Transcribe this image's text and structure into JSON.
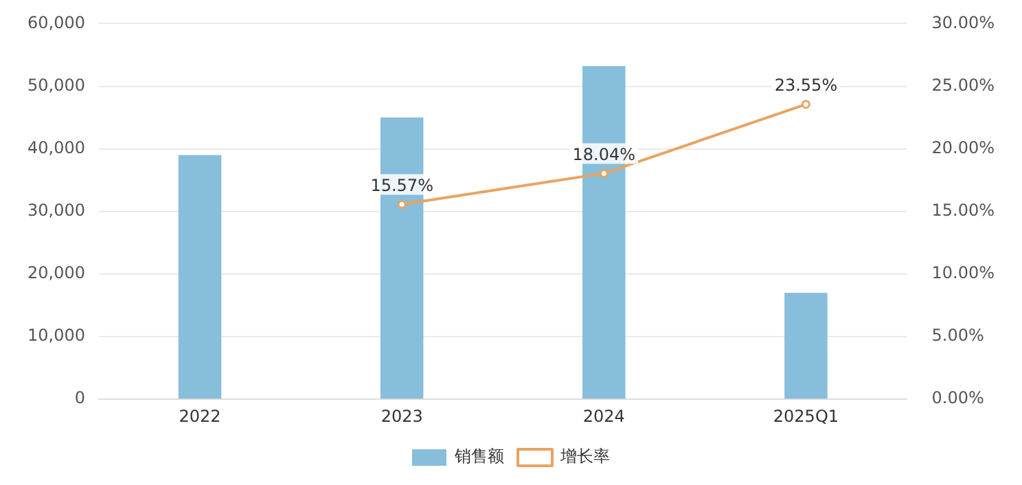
{
  "chart_data": {
    "type": "bar",
    "categories": [
      "2022",
      "2023",
      "2024",
      "2025Q1"
    ],
    "series": [
      {
        "name": "销售额",
        "color": "#86bedb",
        "values": [
          39000,
          45000,
          53200,
          17000
        ]
      },
      {
        "name": "增长率",
        "type": "line",
        "axis": "y2",
        "color": "#e8a463",
        "marker": "circle",
        "values": [
          null,
          15.57,
          18.04,
          23.55
        ],
        "value_labels": [
          null,
          "15.57%",
          "18.04%",
          "23.55%"
        ]
      }
    ],
    "ylim": [
      0,
      60000
    ],
    "yticks": [
      {
        "value": 0,
        "label": "0"
      },
      {
        "value": 10000,
        "label": "10,000"
      },
      {
        "value": 20000,
        "label": "20,000"
      },
      {
        "value": 30000,
        "label": "30,000"
      },
      {
        "value": 40000,
        "label": "40,000"
      },
      {
        "value": 50000,
        "label": "50,000"
      },
      {
        "value": 60000,
        "label": "60,000"
      }
    ],
    "y2lim": [
      0,
      30
    ],
    "y2ticks": [
      {
        "value": 0,
        "label": "0.00%"
      },
      {
        "value": 5,
        "label": "5.00%"
      },
      {
        "value": 10,
        "label": "10.00%"
      },
      {
        "value": 15,
        "label": "15.00%"
      },
      {
        "value": 20,
        "label": "20.00%"
      },
      {
        "value": 25,
        "label": "25.00%"
      },
      {
        "value": 30,
        "label": "30.00%"
      }
    ],
    "grid": "y",
    "legend": "bottom"
  }
}
